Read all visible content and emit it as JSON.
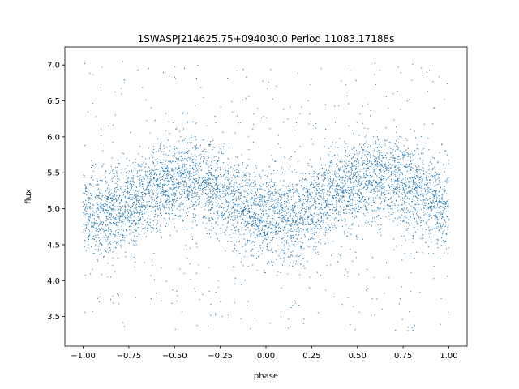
{
  "chart_data": {
    "type": "scatter",
    "title": "1SWASPJ214625.75+094030.0 Period 11083.17188s",
    "xlabel": "phase",
    "ylabel": "flux",
    "xlim": [
      -1.1,
      1.1
    ],
    "ylim": [
      3.09,
      7.25
    ],
    "xticks": [
      -1.0,
      -0.75,
      -0.5,
      -0.25,
      0.0,
      0.25,
      0.5,
      0.75,
      1.0
    ],
    "xtick_labels": [
      "−1.00",
      "−0.75",
      "−0.50",
      "−0.25",
      "0.00",
      "0.25",
      "0.50",
      "0.75",
      "1.00"
    ],
    "yticks": [
      3.5,
      4.0,
      4.5,
      5.0,
      5.5,
      6.0,
      6.5,
      7.0
    ],
    "ytick_labels": [
      "3.5",
      "4.0",
      "4.5",
      "5.0",
      "5.5",
      "6.0",
      "6.5",
      "7.0"
    ],
    "grid": false,
    "series": [
      {
        "color": "#1f77b4",
        "marker_size": 0.6,
        "x": [
          -1.0,
          -0.9,
          -0.8,
          -0.7,
          -0.6,
          -0.5,
          -0.4,
          -0.3,
          -0.2,
          -0.1,
          0.0,
          0.1,
          0.2,
          0.3,
          0.4,
          0.5,
          0.6,
          0.7,
          0.8,
          0.9,
          1.0
        ],
        "y": [
          4.95,
          4.88,
          4.95,
          5.12,
          5.28,
          5.38,
          5.4,
          5.33,
          5.18,
          5.0,
          4.9,
          4.86,
          4.92,
          5.08,
          5.26,
          5.36,
          5.42,
          5.4,
          5.3,
          5.15,
          5.0
        ],
        "spread": 0.3,
        "x_range": [
          -1.0,
          1.0
        ],
        "y_range": [
          3.3,
          7.05
        ]
      }
    ]
  }
}
